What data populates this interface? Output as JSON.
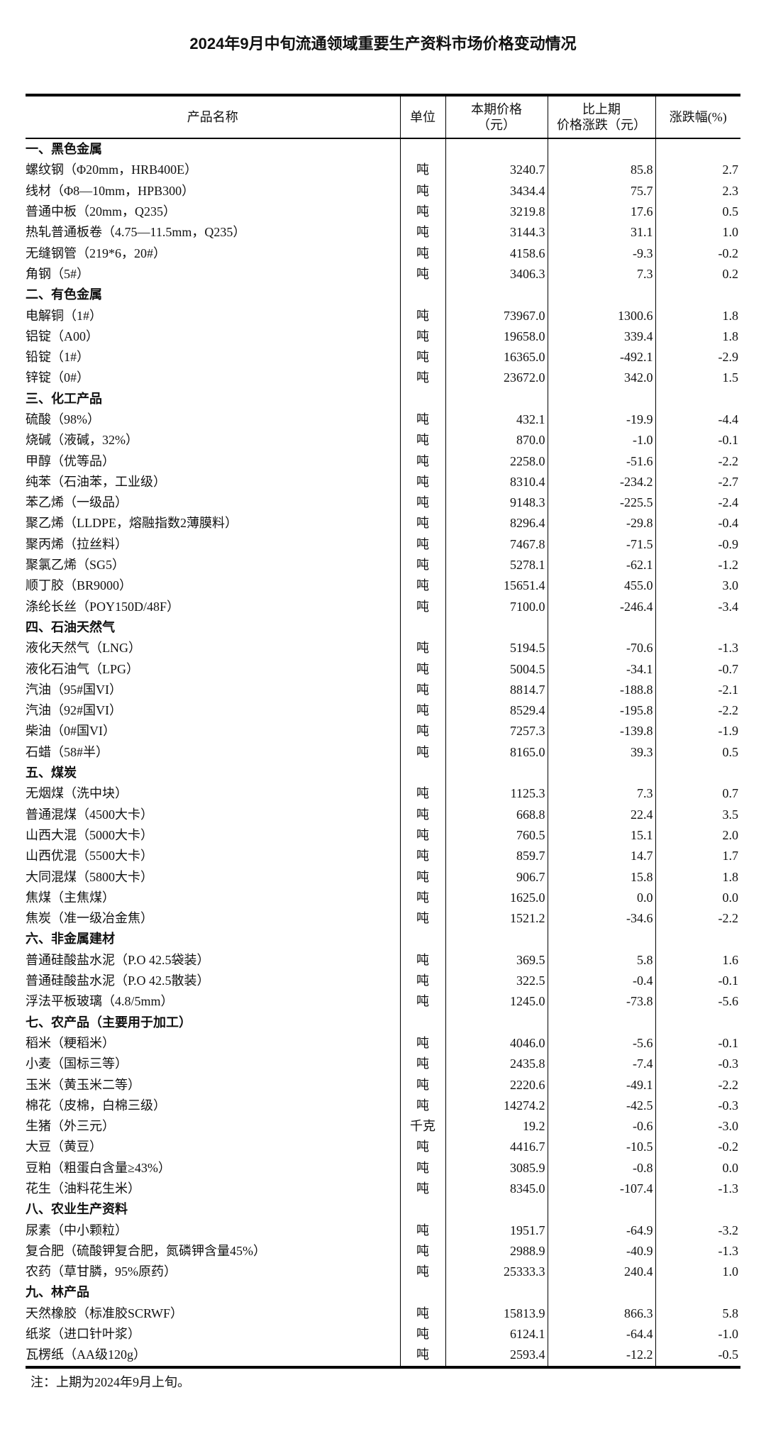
{
  "title": "2024年9月中旬流通领域重要生产资料市场价格变动情况",
  "headers": {
    "name": "产品名称",
    "unit": "单位",
    "price": "本期价格\n（元）",
    "change": "比上期\n价格涨跌（元）",
    "pct": "涨跌幅(%)"
  },
  "sections": [
    {
      "title": "一、黑色金属",
      "items": [
        [
          "螺纹钢（Φ20mm，HRB400E）",
          "吨",
          "3240.7",
          "85.8",
          "2.7"
        ],
        [
          "线材（Φ8—10mm，HPB300）",
          "吨",
          "3434.4",
          "75.7",
          "2.3"
        ],
        [
          "普通中板（20mm，Q235）",
          "吨",
          "3219.8",
          "17.6",
          "0.5"
        ],
        [
          "热轧普通板卷（4.75—11.5mm，Q235）",
          "吨",
          "3144.3",
          "31.1",
          "1.0"
        ],
        [
          "无缝钢管（219*6，20#）",
          "吨",
          "4158.6",
          "-9.3",
          "-0.2"
        ],
        [
          "角钢（5#）",
          "吨",
          "3406.3",
          "7.3",
          "0.2"
        ]
      ]
    },
    {
      "title": "二、有色金属",
      "items": [
        [
          "电解铜（1#）",
          "吨",
          "73967.0",
          "1300.6",
          "1.8"
        ],
        [
          "铝锭（A00）",
          "吨",
          "19658.0",
          "339.4",
          "1.8"
        ],
        [
          "铅锭（1#）",
          "吨",
          "16365.0",
          "-492.1",
          "-2.9"
        ],
        [
          "锌锭（0#）",
          "吨",
          "23672.0",
          "342.0",
          "1.5"
        ]
      ]
    },
    {
      "title": "三、化工产品",
      "items": [
        [
          "硫酸（98%）",
          "吨",
          "432.1",
          "-19.9",
          "-4.4"
        ],
        [
          "烧碱（液碱，32%）",
          "吨",
          "870.0",
          "-1.0",
          "-0.1"
        ],
        [
          "甲醇（优等品）",
          "吨",
          "2258.0",
          "-51.6",
          "-2.2"
        ],
        [
          "纯苯（石油苯，工业级）",
          "吨",
          "8310.4",
          "-234.2",
          "-2.7"
        ],
        [
          "苯乙烯（一级品）",
          "吨",
          "9148.3",
          "-225.5",
          "-2.4"
        ],
        [
          "聚乙烯（LLDPE，熔融指数2薄膜料）",
          "吨",
          "8296.4",
          "-29.8",
          "-0.4"
        ],
        [
          "聚丙烯（拉丝料）",
          "吨",
          "7467.8",
          "-71.5",
          "-0.9"
        ],
        [
          "聚氯乙烯（SG5）",
          "吨",
          "5278.1",
          "-62.1",
          "-1.2"
        ],
        [
          "顺丁胶（BR9000）",
          "吨",
          "15651.4",
          "455.0",
          "3.0"
        ],
        [
          "涤纶长丝（POY150D/48F）",
          "吨",
          "7100.0",
          "-246.4",
          "-3.4"
        ]
      ]
    },
    {
      "title": "四、石油天然气",
      "items": [
        [
          "液化天然气（LNG）",
          "吨",
          "5194.5",
          "-70.6",
          "-1.3"
        ],
        [
          "液化石油气（LPG）",
          "吨",
          "5004.5",
          "-34.1",
          "-0.7"
        ],
        [
          "汽油（95#国VI）",
          "吨",
          "8814.7",
          "-188.8",
          "-2.1"
        ],
        [
          "汽油（92#国VI）",
          "吨",
          "8529.4",
          "-195.8",
          "-2.2"
        ],
        [
          "柴油（0#国VI）",
          "吨",
          "7257.3",
          "-139.8",
          "-1.9"
        ],
        [
          "石蜡（58#半）",
          "吨",
          "8165.0",
          "39.3",
          "0.5"
        ]
      ]
    },
    {
      "title": "五、煤炭",
      "items": [
        [
          "无烟煤（洗中块）",
          "吨",
          "1125.3",
          "7.3",
          "0.7"
        ],
        [
          "普通混煤（4500大卡）",
          "吨",
          "668.8",
          "22.4",
          "3.5"
        ],
        [
          "山西大混（5000大卡）",
          "吨",
          "760.5",
          "15.1",
          "2.0"
        ],
        [
          "山西优混（5500大卡）",
          "吨",
          "859.7",
          "14.7",
          "1.7"
        ],
        [
          "大同混煤（5800大卡）",
          "吨",
          "906.7",
          "15.8",
          "1.8"
        ],
        [
          "焦煤（主焦煤）",
          "吨",
          "1625.0",
          "0.0",
          "0.0"
        ],
        [
          "焦炭（准一级冶金焦）",
          "吨",
          "1521.2",
          "-34.6",
          "-2.2"
        ]
      ]
    },
    {
      "title": "六、非金属建材",
      "items": [
        [
          "普通硅酸盐水泥（P.O 42.5袋装）",
          "吨",
          "369.5",
          "5.8",
          "1.6"
        ],
        [
          "普通硅酸盐水泥（P.O 42.5散装）",
          "吨",
          "322.5",
          "-0.4",
          "-0.1"
        ],
        [
          "浮法平板玻璃（4.8/5mm）",
          "吨",
          "1245.0",
          "-73.8",
          "-5.6"
        ]
      ]
    },
    {
      "title": "七、农产品（主要用于加工）",
      "items": [
        [
          "稻米（粳稻米）",
          "吨",
          "4046.0",
          "-5.6",
          "-0.1"
        ],
        [
          "小麦（国标三等）",
          "吨",
          "2435.8",
          "-7.4",
          "-0.3"
        ],
        [
          "玉米（黄玉米二等）",
          "吨",
          "2220.6",
          "-49.1",
          "-2.2"
        ],
        [
          "棉花（皮棉，白棉三级）",
          "吨",
          "14274.2",
          "-42.5",
          "-0.3"
        ],
        [
          "生猪（外三元）",
          "千克",
          "19.2",
          "-0.6",
          "-3.0"
        ],
        [
          "大豆（黄豆）",
          "吨",
          "4416.7",
          "-10.5",
          "-0.2"
        ],
        [
          "豆粕（粗蛋白含量≥43%）",
          "吨",
          "3085.9",
          "-0.8",
          "0.0"
        ],
        [
          "花生（油料花生米）",
          "吨",
          "8345.0",
          "-107.4",
          "-1.3"
        ]
      ]
    },
    {
      "title": "八、农业生产资料",
      "items": [
        [
          "尿素（中小颗粒）",
          "吨",
          "1951.7",
          "-64.9",
          "-3.2"
        ],
        [
          "复合肥（硫酸钾复合肥，氮磷钾含量45%）",
          "吨",
          "2988.9",
          "-40.9",
          "-1.3"
        ],
        [
          "农药（草甘膦，95%原药）",
          "吨",
          "25333.3",
          "240.4",
          "1.0"
        ]
      ]
    },
    {
      "title": "九、林产品",
      "items": [
        [
          "天然橡胶（标准胶SCRWF）",
          "吨",
          "15813.9",
          "866.3",
          "5.8"
        ],
        [
          "纸浆（进口针叶浆）",
          "吨",
          "6124.1",
          "-64.4",
          "-1.0"
        ],
        [
          "瓦楞纸（AA级120g）",
          "吨",
          "2593.4",
          "-12.2",
          "-0.5"
        ]
      ]
    }
  ],
  "note": "注：上期为2024年9月上旬。"
}
